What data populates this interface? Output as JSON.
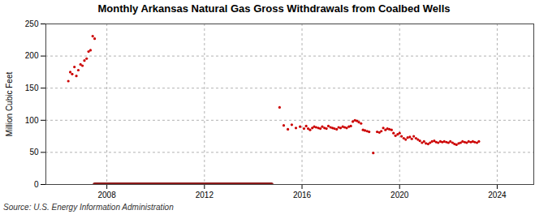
{
  "chart_data": {
    "type": "scatter",
    "title": "Monthly Arkansas Natural Gas Gross Withdrawals from Coalbed Wells",
    "ylabel": "Million Cubic Feet",
    "source": "Source: U.S. Energy Information Administration",
    "xlim": [
      2005.5,
      2025.5
    ],
    "ylim": [
      0,
      250
    ],
    "yticks": [
      0,
      50,
      100,
      150,
      200,
      250
    ],
    "xticks": [
      2008,
      2012,
      2016,
      2020,
      2024
    ],
    "grid": true,
    "series": [
      {
        "type": "scatter",
        "color": "#cc0000",
        "marker": "dot",
        "x": [
          2006.42,
          2006.5,
          2006.58,
          2006.67,
          2006.75,
          2006.83,
          2006.92,
          2007.0,
          2007.08,
          2007.17,
          2007.25,
          2007.33,
          2007.42,
          2007.5
        ],
        "values": [
          161,
          175,
          172,
          183,
          169,
          178,
          187,
          185,
          193,
          196,
          207,
          209,
          231,
          227
        ]
      },
      {
        "type": "line",
        "color": "#8b1a1a",
        "line_style": "solid",
        "x": [
          2007.5,
          2014.75
        ],
        "values": [
          0,
          0
        ]
      },
      {
        "type": "scatter",
        "color": "#cc0000",
        "marker": "dot",
        "x": [
          2015.08,
          2015.25,
          2015.42,
          2015.58,
          2015.75,
          2015.92,
          2016.08,
          2016.17,
          2016.25,
          2016.33,
          2016.42,
          2016.5,
          2016.58,
          2016.67,
          2016.75,
          2016.83,
          2016.92,
          2017.0,
          2017.08,
          2017.17,
          2017.25,
          2017.33,
          2017.42,
          2017.5,
          2017.58,
          2017.67,
          2017.75,
          2017.83,
          2017.92,
          2018.0,
          2018.08,
          2018.17,
          2018.25,
          2018.33,
          2018.42,
          2018.5,
          2018.58,
          2018.67,
          2018.75,
          2018.92,
          2019.08,
          2019.17,
          2019.25,
          2019.33,
          2019.42,
          2019.5,
          2019.58,
          2019.67,
          2019.75,
          2019.83,
          2019.92,
          2020.0,
          2020.08,
          2020.17,
          2020.25,
          2020.33,
          2020.42,
          2020.5,
          2020.58,
          2020.67,
          2020.75,
          2020.83,
          2020.92,
          2021.0,
          2021.08,
          2021.17,
          2021.25,
          2021.33,
          2021.42,
          2021.5,
          2021.58,
          2021.67,
          2021.75,
          2021.83,
          2021.92,
          2022.0,
          2022.08,
          2022.17,
          2022.25,
          2022.33,
          2022.42,
          2022.5,
          2022.58,
          2022.67,
          2022.75,
          2022.83,
          2022.92,
          2023.0,
          2023.08,
          2023.17,
          2023.25
        ],
        "values": [
          120,
          92,
          86,
          93,
          88,
          90,
          87,
          91,
          87,
          85,
          88,
          90,
          89,
          88,
          87,
          90,
          88,
          87,
          91,
          89,
          88,
          87,
          86,
          89,
          88,
          90,
          89,
          88,
          90,
          91,
          98,
          100,
          99,
          97,
          95,
          85,
          84,
          83,
          82,
          49,
          82,
          81,
          83,
          88,
          85,
          87,
          86,
          85,
          80,
          76,
          78,
          80,
          75,
          72,
          70,
          73,
          74,
          71,
          75,
          72,
          70,
          68,
          65,
          67,
          64,
          63,
          65,
          67,
          68,
          66,
          65,
          67,
          66,
          67,
          66,
          65,
          67,
          65,
          63,
          62,
          64,
          65,
          67,
          66,
          65,
          67,
          66,
          67,
          66,
          65,
          67
        ]
      }
    ]
  }
}
